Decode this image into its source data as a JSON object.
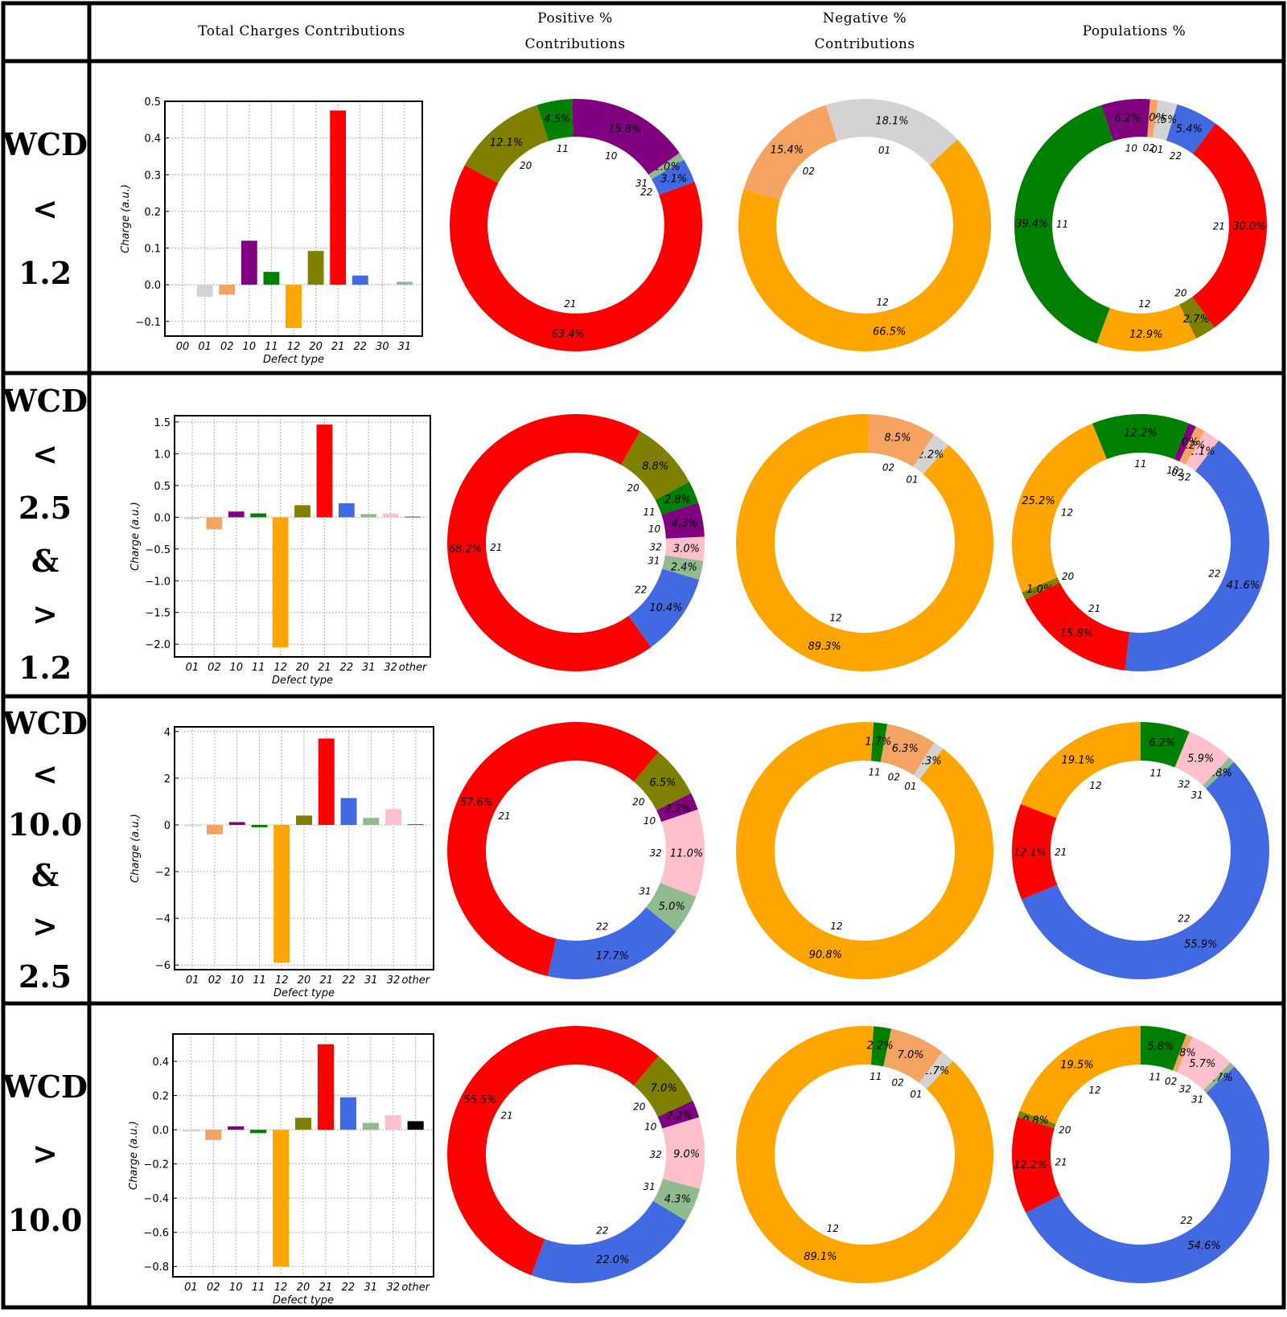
{
  "header": {
    "col_total": [
      "Total  Charges  Contributions"
    ],
    "col_positive": [
      "Positive  %",
      "Contributions"
    ],
    "col_negative": [
      "Negative  %",
      "Contributions"
    ],
    "col_populations": [
      "Populations  %"
    ]
  },
  "rows": [
    {
      "label": [
        "WCD",
        "<",
        "1.2"
      ],
      "bar": {
        "type": "bar",
        "categories": [
          "00",
          "01",
          "02",
          "10",
          "11",
          "12",
          "20",
          "21",
          "22",
          "30",
          "31"
        ],
        "values": [
          0.0,
          -0.033,
          -0.027,
          0.12,
          0.035,
          -0.118,
          0.092,
          0.475,
          0.025,
          0.002,
          0.008
        ],
        "colors": [
          "#d3d3d3",
          "#d3d3d3",
          "#f4a460",
          "#800080",
          "#008000",
          "#ffa500",
          "#808000",
          "#ff0000",
          "#4169e1",
          "#d3d3d3",
          "#8fbc8f"
        ],
        "ylim": [
          -0.14,
          0.5
        ],
        "yticks": [
          -0.1,
          0.0,
          0.1,
          0.2,
          0.3,
          0.4,
          0.5
        ],
        "ytick_labels": [
          "−0.1",
          "0.0",
          "0.1",
          "0.2",
          "0.3",
          "0.4",
          "0.5"
        ],
        "xlabel": "Defect type",
        "ylabel": "Charge (a.u.)",
        "grid": true
      },
      "positive": {
        "type": "pie",
        "slices": [
          {
            "name": "20",
            "value": 12.1,
            "label": "12.1%",
            "color": "#808000"
          },
          {
            "name": "21",
            "value": 63.4,
            "label": "63.4%",
            "color": "#ff0000"
          },
          {
            "name": "22",
            "value": 3.1,
            "label": "3.1%",
            "color": "#4169e1"
          },
          {
            "name": "31",
            "value": 1.0,
            "label": "1.0%",
            "color": "#8fbc8f"
          },
          {
            "name": "10",
            "value": 15.8,
            "label": "15.8%",
            "color": "#800080"
          },
          {
            "name": "11",
            "value": 4.5,
            "label": "4.5%",
            "color": "#008000"
          }
        ]
      },
      "negative": {
        "type": "pie",
        "slices": [
          {
            "name": "02",
            "value": 15.4,
            "label": "15.4%",
            "color": "#f4a460"
          },
          {
            "name": "12",
            "value": 66.5,
            "label": "66.5%",
            "color": "#ffa500"
          },
          {
            "name": "01",
            "value": 18.1,
            "label": "18.1%",
            "color": "#d3d3d3"
          }
        ]
      },
      "populations": {
        "type": "pie",
        "slices": [
          {
            "name": "11",
            "value": 39.4,
            "label": "39.4%",
            "color": "#008000"
          },
          {
            "name": "12",
            "value": 12.9,
            "label": "12.9%",
            "color": "#ffa500"
          },
          {
            "name": "20",
            "value": 2.7,
            "label": "2.7%",
            "color": "#808000"
          },
          {
            "name": "21",
            "value": 30.0,
            "label": "30.0%",
            "color": "#ff0000"
          },
          {
            "name": "22",
            "value": 5.4,
            "label": "5.4%",
            "color": "#4169e1"
          },
          {
            "name": "01",
            "value": 2.5,
            "label": "2.5%",
            "color": "#d3d3d3"
          },
          {
            "name": "02",
            "value": 1.0,
            "label": "1.0%",
            "color": "#f4a460"
          },
          {
            "name": "10",
            "value": 6.2,
            "label": "6.2%",
            "color": "#800080"
          }
        ]
      }
    },
    {
      "label": [
        "WCD",
        "<",
        "2.5",
        "&",
        ">",
        "1.2"
      ],
      "bar": {
        "type": "bar",
        "categories": [
          "01",
          "02",
          "10",
          "11",
          "12",
          "20",
          "21",
          "22",
          "31",
          "32",
          "other"
        ],
        "values": [
          -0.03,
          -0.19,
          0.09,
          0.06,
          -2.05,
          0.19,
          1.46,
          0.22,
          0.05,
          0.06,
          0.01
        ],
        "colors": [
          "#d3d3d3",
          "#f4a460",
          "#800080",
          "#008000",
          "#ffa500",
          "#808000",
          "#ff0000",
          "#4169e1",
          "#8fbc8f",
          "#ffc0cb",
          "#555555"
        ],
        "ylim": [
          -2.2,
          1.6
        ],
        "yticks": [
          -2.0,
          -1.5,
          -1.0,
          -0.5,
          0.0,
          0.5,
          1.0,
          1.5
        ],
        "ytick_labels": [
          "−2.0",
          "−1.5",
          "−1.0",
          "−0.5",
          "0.0",
          "0.5",
          "1.0",
          "1.5"
        ],
        "xlabel": "Defect type",
        "ylabel": "Charge (a.u.)",
        "grid": true
      },
      "positive": {
        "type": "pie",
        "slices": [
          {
            "name": "21",
            "value": 68.2,
            "label": "68.2%",
            "color": "#ff0000"
          },
          {
            "name": "22",
            "value": 10.4,
            "label": "10.4%",
            "color": "#4169e1"
          },
          {
            "name": "31",
            "value": 2.4,
            "label": "2.4%",
            "color": "#8fbc8f"
          },
          {
            "name": "32",
            "value": 3.0,
            "label": "3.0%",
            "color": "#ffc0cb"
          },
          {
            "name": "10",
            "value": 4.3,
            "label": "4.3%",
            "color": "#800080"
          },
          {
            "name": "11",
            "value": 2.8,
            "label": "2.8%",
            "color": "#008000"
          },
          {
            "name": "20",
            "value": 8.8,
            "label": "8.8%",
            "color": "#808000"
          }
        ]
      },
      "negative": {
        "type": "pie",
        "slices": [
          {
            "name": "12",
            "value": 89.3,
            "label": "89.3%",
            "color": "#ffa500"
          },
          {
            "name": "01",
            "value": 2.2,
            "label": "2.2%",
            "color": "#d3d3d3"
          },
          {
            "name": "02",
            "value": 8.5,
            "label": "8.5%",
            "color": "#f4a460"
          }
        ]
      },
      "populations": {
        "type": "pie",
        "slices": [
          {
            "name": "12",
            "value": 25.2,
            "label": "25.2%",
            "color": "#ffa500"
          },
          {
            "name": "20",
            "value": 1.0,
            "label": "1.0%",
            "color": "#808000"
          },
          {
            "name": "21",
            "value": 15.8,
            "label": "15.8%",
            "color": "#ff0000"
          },
          {
            "name": "22",
            "value": 41.6,
            "label": "41.6%",
            "color": "#4169e1"
          },
          {
            "name": "32",
            "value": 2.1,
            "label": "2.1%",
            "color": "#ffc0cb"
          },
          {
            "name": "02",
            "value": 1.2,
            "label": "1.2%",
            "color": "#f4a460"
          },
          {
            "name": "10",
            "value": 1.0,
            "label": "1.0%",
            "color": "#800080"
          },
          {
            "name": "11",
            "value": 12.2,
            "label": "12.2%",
            "color": "#008000"
          }
        ]
      }
    },
    {
      "label": [
        "WCD",
        "<",
        "10.0",
        "&",
        ">",
        "2.5"
      ],
      "bar": {
        "type": "bar",
        "categories": [
          "01",
          "02",
          "10",
          "11",
          "12",
          "20",
          "21",
          "22",
          "31",
          "32",
          "other"
        ],
        "values": [
          -0.05,
          -0.4,
          0.12,
          -0.1,
          -5.9,
          0.4,
          3.7,
          1.15,
          0.3,
          0.68,
          0.03
        ],
        "colors": [
          "#d3d3d3",
          "#f4a460",
          "#800080",
          "#008000",
          "#ffa500",
          "#808000",
          "#ff0000",
          "#4169e1",
          "#8fbc8f",
          "#ffc0cb",
          "#555555"
        ],
        "ylim": [
          -6.2,
          4.2
        ],
        "yticks": [
          -6,
          -4,
          -2,
          0,
          2,
          4
        ],
        "ytick_labels": [
          "−6",
          "−4",
          "−2",
          "0",
          "2",
          "4"
        ],
        "xlabel": "Defect type",
        "ylabel": "Charge (a.u.)",
        "grid": true
      },
      "positive": {
        "type": "pie",
        "slices": [
          {
            "name": "21",
            "value": 57.6,
            "label": "57.6%",
            "color": "#ff0000"
          },
          {
            "name": "22",
            "value": 17.7,
            "label": "17.7%",
            "color": "#4169e1"
          },
          {
            "name": "31",
            "value": 5.0,
            "label": "5.0%",
            "color": "#8fbc8f"
          },
          {
            "name": "32",
            "value": 11.0,
            "label": "11.0%",
            "color": "#ffc0cb"
          },
          {
            "name": "10",
            "value": 2.2,
            "label": "2.2%",
            "color": "#800080"
          },
          {
            "name": "20",
            "value": 6.5,
            "label": "6.5%",
            "color": "#808000"
          }
        ]
      },
      "negative": {
        "type": "pie",
        "slices": [
          {
            "name": "12",
            "value": 90.8,
            "label": "90.8%",
            "color": "#ffa500"
          },
          {
            "name": "01",
            "value": 1.3,
            "label": "1.3%",
            "color": "#d3d3d3"
          },
          {
            "name": "02",
            "value": 6.3,
            "label": "6.3%",
            "color": "#f4a460"
          },
          {
            "name": "11",
            "value": 1.7,
            "label": "1.7%",
            "color": "#008000"
          }
        ]
      },
      "populations": {
        "type": "pie",
        "slices": [
          {
            "name": "12",
            "value": 19.1,
            "label": "19.1%",
            "color": "#ffa500"
          },
          {
            "name": "21",
            "value": 12.1,
            "label": "12.1%",
            "color": "#ff0000"
          },
          {
            "name": "22",
            "value": 55.9,
            "label": "55.9%",
            "color": "#4169e1"
          },
          {
            "name": "31",
            "value": 0.8,
            "label": "0.8%",
            "color": "#8fbc8f"
          },
          {
            "name": "32",
            "value": 5.9,
            "label": "5.9%",
            "color": "#ffc0cb"
          },
          {
            "name": "11",
            "value": 6.2,
            "label": "6.2%",
            "color": "#008000"
          }
        ]
      }
    },
    {
      "label": [
        "WCD",
        ">",
        "10.0"
      ],
      "bar": {
        "type": "bar",
        "categories": [
          "01",
          "02",
          "10",
          "11",
          "12",
          "20",
          "21",
          "22",
          "31",
          "32",
          "other"
        ],
        "values": [
          -0.01,
          -0.06,
          0.02,
          -0.02,
          -0.8,
          0.07,
          0.5,
          0.19,
          0.04,
          0.085,
          0.05
        ],
        "colors": [
          "#d3d3d3",
          "#f4a460",
          "#800080",
          "#008000",
          "#ffa500",
          "#808000",
          "#ff0000",
          "#4169e1",
          "#8fbc8f",
          "#ffc0cb",
          "#000000"
        ],
        "ylim": [
          -0.86,
          0.56
        ],
        "yticks": [
          -0.8,
          -0.6,
          -0.4,
          -0.2,
          0.0,
          0.2,
          0.4
        ],
        "ytick_labels": [
          "−0.8",
          "−0.6",
          "−0.4",
          "−0.2",
          "0.0",
          "0.2",
          "0.4"
        ],
        "xlabel": "Defect type",
        "ylabel": "Charge (a.u.)",
        "grid": true
      },
      "positive": {
        "type": "pie",
        "slices": [
          {
            "name": "21",
            "value": 55.5,
            "label": "55.5%",
            "color": "#ff0000"
          },
          {
            "name": "22",
            "value": 22.0,
            "label": "22.0%",
            "color": "#4169e1"
          },
          {
            "name": "31",
            "value": 4.3,
            "label": "4.3%",
            "color": "#8fbc8f"
          },
          {
            "name": "32",
            "value": 9.0,
            "label": "9.0%",
            "color": "#ffc0cb"
          },
          {
            "name": "10",
            "value": 2.2,
            "label": "2.2%",
            "color": "#800080"
          },
          {
            "name": "20",
            "value": 7.0,
            "label": "7.0%",
            "color": "#808000"
          }
        ]
      },
      "negative": {
        "type": "pie",
        "slices": [
          {
            "name": "12",
            "value": 89.1,
            "label": "89.1%",
            "color": "#ffa500"
          },
          {
            "name": "01",
            "value": 1.7,
            "label": "1.7%",
            "color": "#d3d3d3"
          },
          {
            "name": "02",
            "value": 7.0,
            "label": "7.0%",
            "color": "#f4a460"
          },
          {
            "name": "11",
            "value": 2.2,
            "label": "2.2%",
            "color": "#008000"
          }
        ]
      },
      "populations": {
        "type": "pie",
        "slices": [
          {
            "name": "12",
            "value": 19.5,
            "label": "19.5%",
            "color": "#ffa500"
          },
          {
            "name": "20",
            "value": 0.8,
            "label": "0.8%",
            "color": "#808000"
          },
          {
            "name": "21",
            "value": 12.2,
            "label": "12.2%",
            "color": "#ff0000"
          },
          {
            "name": "22",
            "value": 54.6,
            "label": "54.6%",
            "color": "#4169e1"
          },
          {
            "name": "31",
            "value": 0.7,
            "label": "0.7%",
            "color": "#8fbc8f"
          },
          {
            "name": "32",
            "value": 5.7,
            "label": "5.7%",
            "color": "#ffc0cb"
          },
          {
            "name": "02",
            "value": 0.8,
            "label": "0.8%",
            "color": "#f4a460"
          },
          {
            "name": "11",
            "value": 5.8,
            "label": "5.8%",
            "color": "#008000"
          }
        ]
      }
    }
  ]
}
